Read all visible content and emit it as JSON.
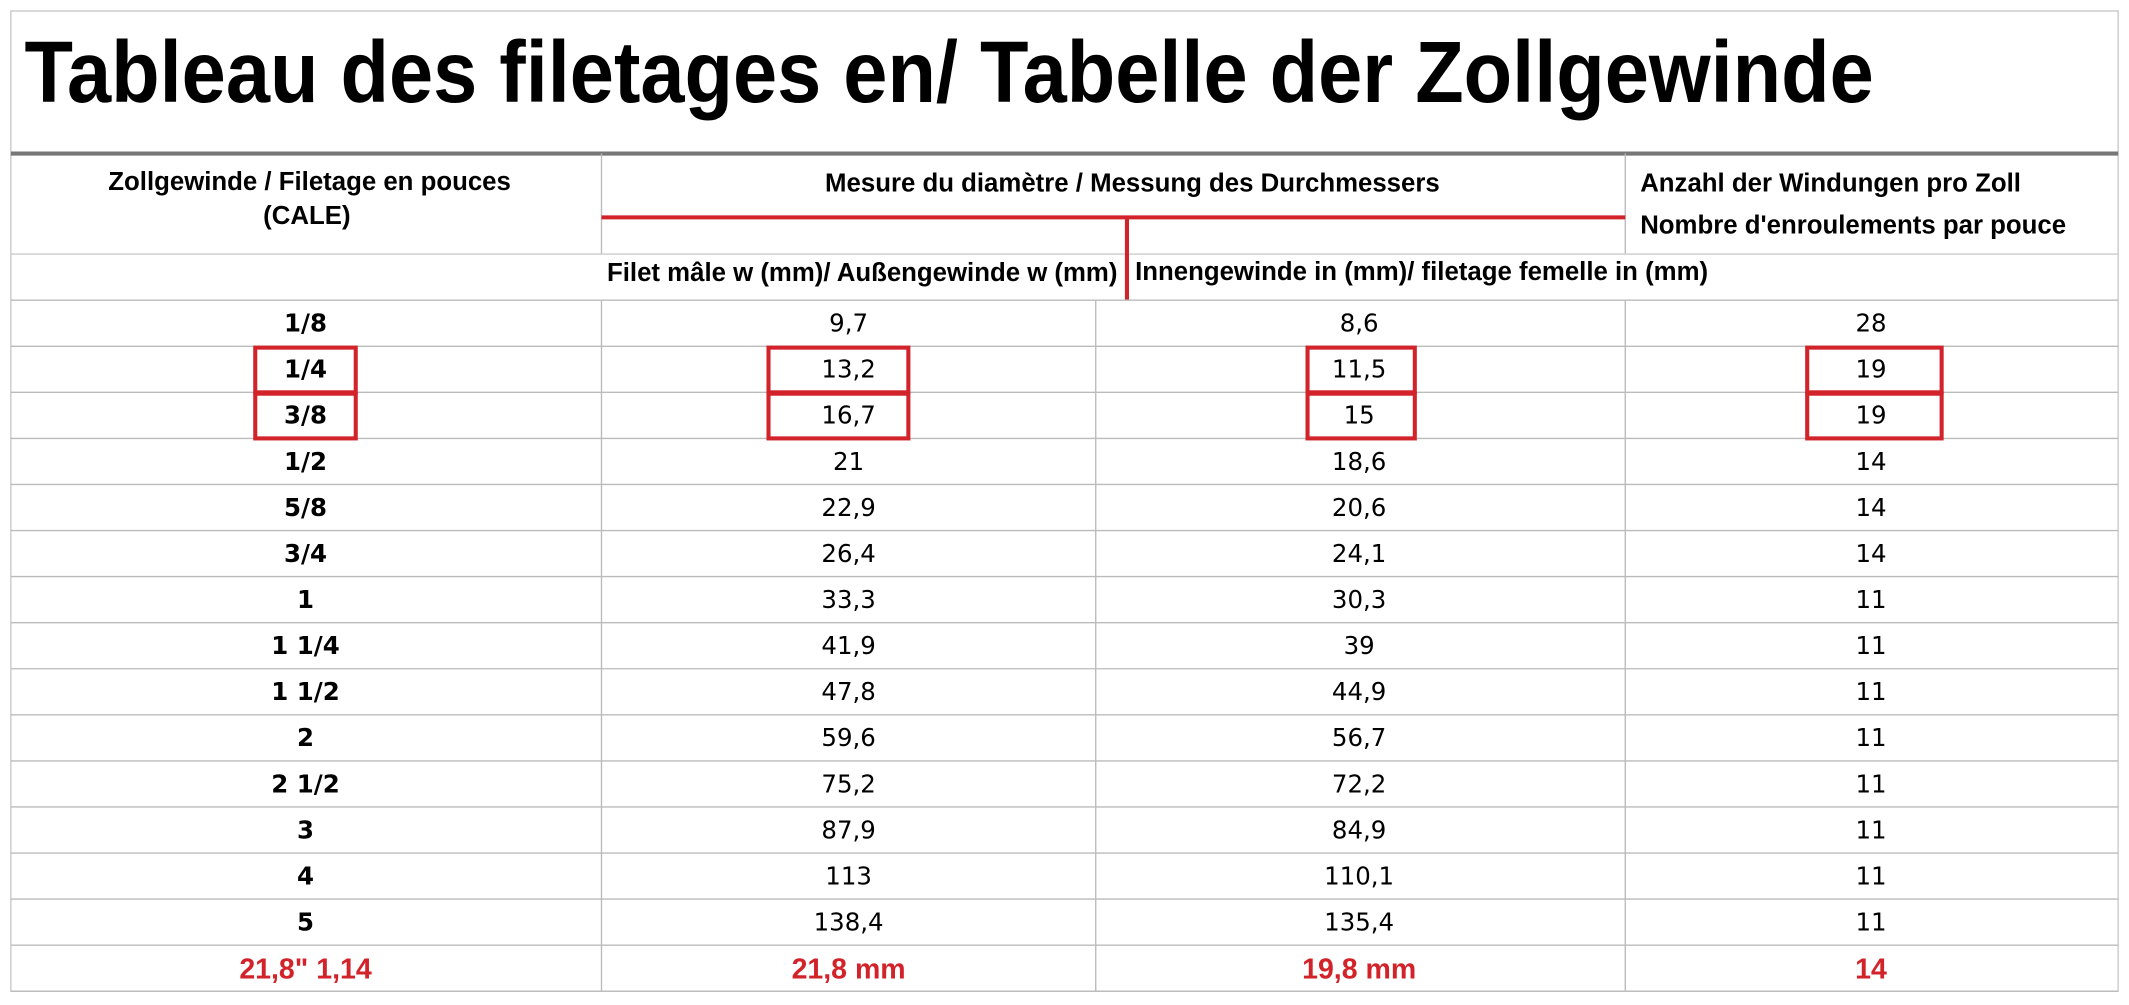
{
  "title": "Tableau des filetages en/ Tabelle der Zollgewinde",
  "header": {
    "size": [
      "Zollgewinde / Filetage en pouces",
      "(CALE)"
    ],
    "diameter": "Mesure du diamètre / Messung des Durchmessers",
    "turns": [
      "Anzahl der Windungen pro Zoll",
      "Nombre d'enroulements par pouce"
    ],
    "male": "Filet mâle w (mm)/ Außengewinde w (mm)",
    "female": "Innengewinde in (mm)/ filetage femelle in (mm)"
  },
  "rows": [
    [
      "1/8",
      "9,7",
      "8,6",
      "28"
    ],
    [
      "1/4",
      "13,2",
      "11,5",
      "19"
    ],
    [
      "3/8",
      "16,7",
      "15",
      "19"
    ],
    [
      "1/2",
      "21",
      "18,6",
      "14"
    ],
    [
      "5/8",
      "22,9",
      "20,6",
      "14"
    ],
    [
      "3/4",
      "26,4",
      "24,1",
      "14"
    ],
    [
      "1",
      "33,3",
      "30,3",
      "11"
    ],
    [
      "1 1/4",
      "41,9",
      "39",
      "11"
    ],
    [
      "1 1/2",
      "47,8",
      "44,9",
      "11"
    ],
    [
      "2",
      "59,6",
      "56,7",
      "11"
    ],
    [
      "2 1/2",
      "75,2",
      "72,2",
      "11"
    ],
    [
      "3",
      "87,9",
      "84,9",
      "11"
    ],
    [
      "4",
      "113",
      "110,1",
      "11"
    ],
    [
      "5",
      "138,4",
      "135,4",
      "11"
    ]
  ],
  "footer": [
    "21,8\" 1,14",
    "21,8 mm",
    "19,8 mm",
    "14"
  ],
  "highlighted_rows": [
    1,
    2
  ]
}
